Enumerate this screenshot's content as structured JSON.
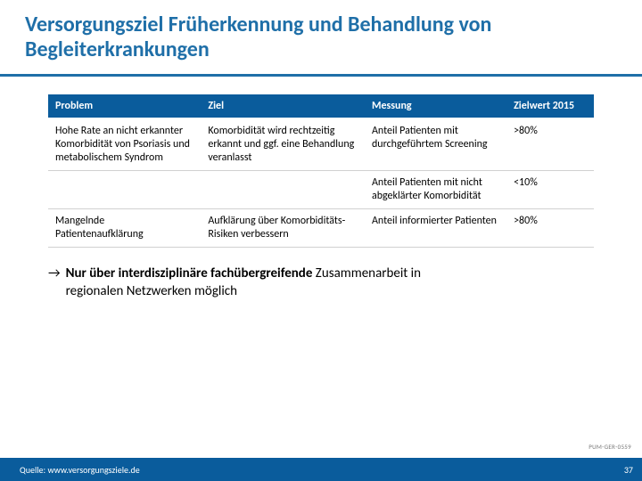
{
  "title": "Versorgungsziel Früherkennung und Behandlung von Begleiterkrankungen",
  "table": {
    "headers": {
      "problem": "Problem",
      "ziel": "Ziel",
      "messung": "Messung",
      "zielwert": "Zielwert 2015"
    },
    "rows": [
      {
        "problem": "Hohe Rate an nicht erkannter Komorbidität von Psoriasis und metabolischem Syndrom",
        "ziel": "Komorbidität wird rechtzeitig erkannt und ggf. eine Behandlung veranlasst",
        "messung": "Anteil Patienten mit durchgeführtem Screening",
        "zielwert": ">80%"
      },
      {
        "problem": "",
        "ziel": "",
        "messung": "Anteil Patienten mit nicht abgeklärter Komorbidität",
        "zielwert": "<10%"
      },
      {
        "problem": "Mangelnde Patientenaufklärung",
        "ziel": "Aufklärung über Komorbiditäts-Risiken verbessern",
        "messung": "Anteil informierter Patienten",
        "zielwert": ">80%"
      }
    ]
  },
  "note": {
    "arrow": "→",
    "bold": "Nur über interdisziplinäre fachübergreifende",
    "rest1": " Zusammenarbeit in",
    "rest2": "regionalen Netzwerken möglich"
  },
  "code_ref": "PUM-GER-0559",
  "source": "Quelle: www.versorgungsziele.de",
  "page_number": "37",
  "colors": {
    "brand": "#1f6fa8",
    "header_bg": "#0a5c9c",
    "text": "#000000",
    "footer_text": "#ffffff"
  }
}
